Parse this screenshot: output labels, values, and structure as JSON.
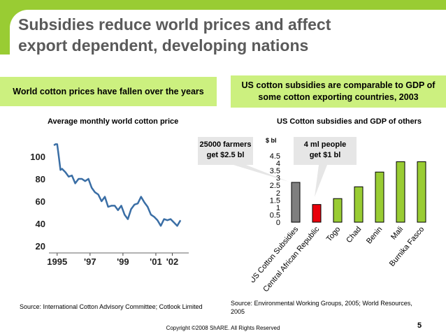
{
  "slide": {
    "title_line1": "Subsidies reduce world prices and affect",
    "title_line2": "export dependent, developing nations",
    "left_box": "World cotton prices have fallen over the years",
    "right_box_line1": "US cotton subsidies are comparable to GDP of",
    "right_box_line2": "some cotton exporting countries, 2003",
    "callout_left_line1": "25000 farmers",
    "callout_left_line2": "get $2.5 bl",
    "callout_right_line1": "4 ml people",
    "callout_right_line2": "get $1 bl",
    "source_left": "Source: International Cotton Advisory Committee; Cotlook Limited",
    "source_right_line1": "Source: Environmental Working Groups, 2005; World Resources,",
    "source_right_line2": "2005",
    "copyright": "Copyright ©2008 ShARE. All Rights Reserved",
    "page_number": "5",
    "colors": {
      "accent_green": "#99cc33",
      "box_green": "#ccf07f",
      "line_blue": "#3a6ea5",
      "bar_green": "#99cc33",
      "bar_grey": "#7f7f7f",
      "bar_red": "#e8000b"
    }
  },
  "chart_data": [
    {
      "type": "line",
      "title": "Average monthly world cotton price",
      "xlabel": "",
      "ylabel": "",
      "x_tick_labels": [
        "1995",
        "'97",
        "'99",
        "'01",
        "'02"
      ],
      "y_ticks": [
        20,
        40,
        60,
        80,
        100
      ],
      "ylim": [
        15,
        115
      ],
      "xlim": [
        1994.5,
        2003
      ],
      "grid": false,
      "series": [
        {
          "x": [
            1994.8,
            1994.9,
            1995.0,
            1995.1,
            1995.2,
            1995.3,
            1995.5,
            1995.7,
            1995.9,
            1996.1,
            1996.3,
            1996.5,
            1996.7,
            1996.9,
            1997.1,
            1997.3,
            1997.5,
            1997.7,
            1997.9,
            1998.1,
            1998.3,
            1998.5,
            1998.7,
            1998.9,
            1999.1,
            1999.3,
            1999.5,
            1999.7,
            1999.9,
            2000.1,
            2000.3,
            2000.5,
            2000.7,
            2000.9,
            2001.1,
            2001.3,
            2001.5,
            2001.7,
            2001.9,
            2002.1,
            2002.3,
            2002.5
          ],
          "y": [
            110,
            111,
            111,
            100,
            88,
            89,
            86,
            82,
            83,
            76,
            80,
            80,
            78,
            80,
            72,
            68,
            66,
            60,
            64,
            55,
            56,
            56,
            52,
            56,
            48,
            44,
            53,
            57,
            58,
            64,
            59,
            55,
            48,
            46,
            43,
            38,
            44,
            43,
            44,
            41,
            38,
            43
          ]
        }
      ]
    },
    {
      "type": "bar",
      "title": "US Cotton subsidies and GDP of others",
      "ylabel": "$ bl",
      "xlabel": "",
      "categories": [
        "US Cotton Subsidies",
        "Central African Republic",
        "Togo",
        "Chad",
        "Benin",
        "Mali",
        "Burnika Fasco"
      ],
      "values": [
        2.7,
        1.2,
        1.6,
        2.4,
        3.4,
        4.1,
        4.1
      ],
      "y_ticks": [
        "0",
        "0.5",
        "1",
        "1.5",
        "2",
        "2.5",
        "3",
        "3.5",
        "4",
        "4.5"
      ],
      "ylim": [
        0,
        4.5
      ],
      "grid": false
    }
  ]
}
